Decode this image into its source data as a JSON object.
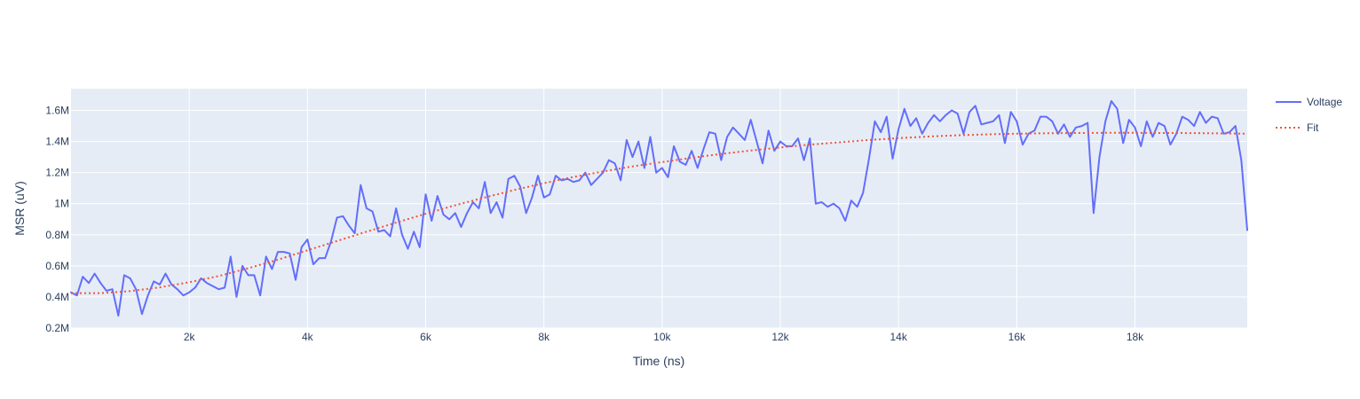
{
  "chart_data": {
    "type": "line",
    "xlabel": "Time (ns)",
    "ylabel": "MSR (uV)",
    "xlim": [
      0,
      19900
    ],
    "ylim": [
      200000,
      1740000
    ],
    "x_ticks": [
      2000,
      4000,
      6000,
      8000,
      10000,
      12000,
      14000,
      16000,
      18000
    ],
    "x_tick_labels": [
      "2k",
      "4k",
      "6k",
      "8k",
      "10k",
      "12k",
      "14k",
      "16k",
      "18k"
    ],
    "y_ticks": [
      200000,
      400000,
      600000,
      800000,
      1000000,
      1200000,
      1400000,
      1600000
    ],
    "y_tick_labels": [
      "0.2M",
      "0.4M",
      "0.6M",
      "0.8M",
      "1M",
      "1.2M",
      "1.4M",
      "1.6M"
    ],
    "grid": true,
    "legend_position": "top-right",
    "background_color": "#e5ecf6",
    "series": [
      {
        "name": "Voltage",
        "style": "solid",
        "color": "#636efa",
        "x": [
          0,
          100,
          200,
          300,
          400,
          500,
          600,
          700,
          800,
          900,
          1000,
          1100,
          1200,
          1300,
          1400,
          1500,
          1600,
          1700,
          1800,
          1900,
          2000,
          2100,
          2200,
          2300,
          2400,
          2500,
          2600,
          2700,
          2800,
          2900,
          3000,
          3100,
          3200,
          3300,
          3400,
          3500,
          3600,
          3700,
          3800,
          3900,
          4000,
          4100,
          4200,
          4300,
          4400,
          4500,
          4600,
          4700,
          4800,
          4900,
          5000,
          5100,
          5200,
          5300,
          5400,
          5500,
          5600,
          5700,
          5800,
          5900,
          6000,
          6100,
          6200,
          6300,
          6400,
          6500,
          6600,
          6700,
          6800,
          6900,
          7000,
          7100,
          7200,
          7300,
          7400,
          7500,
          7600,
          7700,
          7800,
          7900,
          8000,
          8100,
          8200,
          8300,
          8400,
          8500,
          8600,
          8700,
          8800,
          8900,
          9000,
          9100,
          9200,
          9300,
          9400,
          9500,
          9600,
          9700,
          9800,
          9900,
          10000,
          10100,
          10200,
          10300,
          10400,
          10500,
          10600,
          10700,
          10800,
          10900,
          11000,
          11100,
          11200,
          11300,
          11400,
          11500,
          11600,
          11700,
          11800,
          11900,
          12000,
          12100,
          12200,
          12300,
          12400,
          12500,
          12600,
          12700,
          12800,
          12900,
          13000,
          13100,
          13200,
          13300,
          13400,
          13500,
          13600,
          13700,
          13800,
          13900,
          14000,
          14100,
          14200,
          14300,
          14400,
          14500,
          14600,
          14700,
          14800,
          14900,
          15000,
          15100,
          15200,
          15300,
          15400,
          15500,
          15600,
          15700,
          15800,
          15900,
          16000,
          16100,
          16200,
          16300,
          16400,
          16500,
          16600,
          16700,
          16800,
          16900,
          17000,
          17100,
          17200,
          17300,
          17400,
          17500,
          17600,
          17700,
          17800,
          17900,
          18000,
          18100,
          18200,
          18300,
          18400,
          18500,
          18600,
          18700,
          18800,
          18900,
          19000,
          19100,
          19200,
          19300,
          19400,
          19500,
          19600,
          19700,
          19800,
          19900
        ],
        "y": [
          430000,
          410000,
          530000,
          490000,
          550000,
          490000,
          440000,
          450000,
          280000,
          540000,
          520000,
          450000,
          290000,
          410000,
          500000,
          480000,
          550000,
          480000,
          450000,
          410000,
          430000,
          460000,
          520000,
          490000,
          470000,
          450000,
          460000,
          660000,
          400000,
          600000,
          540000,
          540000,
          410000,
          660000,
          580000,
          690000,
          690000,
          680000,
          510000,
          720000,
          770000,
          610000,
          650000,
          650000,
          760000,
          910000,
          920000,
          860000,
          810000,
          1120000,
          970000,
          950000,
          820000,
          830000,
          790000,
          970000,
          800000,
          710000,
          820000,
          720000,
          1060000,
          890000,
          1050000,
          930000,
          900000,
          940000,
          850000,
          940000,
          1010000,
          970000,
          1140000,
          940000,
          1010000,
          910000,
          1160000,
          1180000,
          1110000,
          940000,
          1040000,
          1180000,
          1040000,
          1060000,
          1180000,
          1150000,
          1160000,
          1140000,
          1150000,
          1200000,
          1120000,
          1160000,
          1200000,
          1280000,
          1260000,
          1150000,
          1410000,
          1300000,
          1400000,
          1230000,
          1430000,
          1200000,
          1230000,
          1170000,
          1370000,
          1270000,
          1250000,
          1340000,
          1230000,
          1350000,
          1460000,
          1450000,
          1280000,
          1430000,
          1490000,
          1450000,
          1410000,
          1540000,
          1400000,
          1260000,
          1470000,
          1340000,
          1400000,
          1370000,
          1370000,
          1420000,
          1280000,
          1420000,
          1000000,
          1010000,
          980000,
          1000000,
          970000,
          890000,
          1020000,
          980000,
          1070000,
          1290000,
          1530000,
          1460000,
          1560000,
          1290000,
          1480000,
          1610000,
          1500000,
          1550000,
          1450000,
          1520000,
          1570000,
          1530000,
          1570000,
          1600000,
          1580000,
          1450000,
          1590000,
          1630000,
          1510000,
          1520000,
          1530000,
          1570000,
          1390000,
          1590000,
          1530000,
          1380000,
          1450000,
          1470000,
          1560000,
          1560000,
          1530000,
          1450000,
          1510000,
          1430000,
          1490000,
          1500000,
          1520000,
          940000,
          1300000,
          1530000,
          1660000,
          1610000,
          1390000,
          1540000,
          1490000,
          1370000,
          1530000,
          1430000,
          1520000,
          1500000,
          1380000,
          1450000,
          1560000,
          1540000,
          1500000,
          1590000,
          1520000,
          1560000,
          1550000,
          1450000,
          1460000,
          1500000,
          1280000,
          830000
        ]
      },
      {
        "name": "Fit",
        "style": "dotted",
        "color": "#ef553b",
        "x": [
          0,
          500,
          1000,
          1500,
          2000,
          2500,
          3000,
          3500,
          4000,
          4500,
          5000,
          5500,
          6000,
          6500,
          7000,
          7500,
          8000,
          8500,
          9000,
          9500,
          10000,
          10500,
          11000,
          11500,
          12000,
          12500,
          13000,
          13500,
          14000,
          14500,
          15000,
          15500,
          16000,
          16500,
          17000,
          17500,
          18000,
          18500,
          19000,
          19500,
          19900
        ],
        "y": [
          425000,
          425000,
          438000,
          462000,
          495000,
          535000,
          585000,
          640000,
          700000,
          760000,
          820000,
          878000,
          935000,
          990000,
          1040000,
          1088000,
          1132000,
          1172000,
          1207000,
          1240000,
          1268000,
          1295000,
          1320000,
          1342000,
          1362000,
          1380000,
          1395000,
          1410000,
          1422000,
          1432000,
          1440000,
          1446000,
          1450000,
          1453000,
          1455000,
          1456000,
          1456000,
          1455000,
          1454000,
          1452000,
          1450000
        ]
      }
    ]
  }
}
